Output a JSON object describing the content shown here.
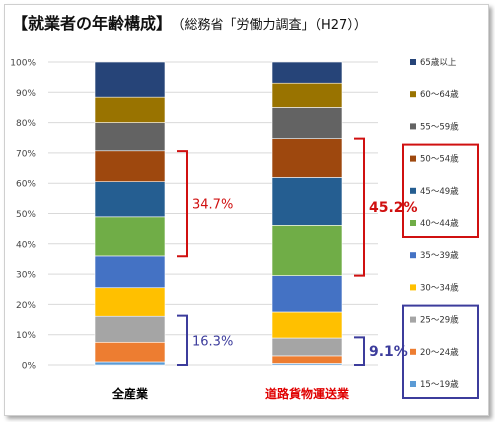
{
  "title": {
    "main": "【就業者の年齢構成】",
    "sub": "（総務省「労働力調査」（H27））"
  },
  "chart_data": {
    "type": "bar",
    "stacked": true,
    "ylim": [
      0,
      100
    ],
    "yticks": [
      "0%",
      "10%",
      "20%",
      "30%",
      "40%",
      "50%",
      "60%",
      "70%",
      "80%",
      "90%",
      "100%"
    ],
    "categories": [
      "全産業",
      "道路貨物運送業"
    ],
    "category_colors": [
      "#000000",
      "#e00000"
    ],
    "series": [
      {
        "name": "15～19歳",
        "color": "#5b9bd5",
        "values": [
          1.0,
          0.5
        ]
      },
      {
        "name": "20～24歳",
        "color": "#ed7d31",
        "values": [
          6.5,
          2.5
        ]
      },
      {
        "name": "25～29歳",
        "color": "#a5a5a5",
        "values": [
          8.6,
          5.9
        ]
      },
      {
        "name": "30～34歳",
        "color": "#ffc000",
        "values": [
          9.4,
          8.6
        ]
      },
      {
        "name": "35～39歳",
        "color": "#4472c4",
        "values": [
          10.5,
          12.0
        ]
      },
      {
        "name": "40～44歳",
        "color": "#70ad47",
        "values": [
          12.9,
          16.6
        ]
      },
      {
        "name": "45～49歳",
        "color": "#255e91",
        "values": [
          11.6,
          15.8
        ]
      },
      {
        "name": "50～54歳",
        "color": "#9e480e",
        "values": [
          10.2,
          12.8
        ]
      },
      {
        "name": "55～59歳",
        "color": "#636363",
        "values": [
          9.3,
          10.3
        ]
      },
      {
        "name": "60～64歳",
        "color": "#997300",
        "values": [
          8.4,
          8.0
        ]
      },
      {
        "name": "65歳以上",
        "color": "#264478",
        "values": [
          11.6,
          7.0
        ]
      }
    ],
    "legend_placement": "right",
    "annotations": [
      {
        "label": "34.7%",
        "category": 0,
        "from": 35.9,
        "to": 70.6,
        "color": "#d01010",
        "bold": false
      },
      {
        "label": "16.3%",
        "category": 0,
        "from": 0.0,
        "to": 16.3,
        "color": "#3c3c9c",
        "bold": false
      },
      {
        "label": "45.2%",
        "category": 1,
        "from": 29.5,
        "to": 74.7,
        "color": "#d01010",
        "bold": true
      },
      {
        "label": "9.1%",
        "category": 1,
        "from": 0.0,
        "to": 9.1,
        "color": "#3c3c9c",
        "bold": true
      }
    ],
    "legend_boxes": [
      {
        "series_from": 7,
        "series_to": 5,
        "color": "#d01010"
      },
      {
        "series_from": 2,
        "series_to": 0,
        "color": "#3c3c9c"
      }
    ]
  }
}
